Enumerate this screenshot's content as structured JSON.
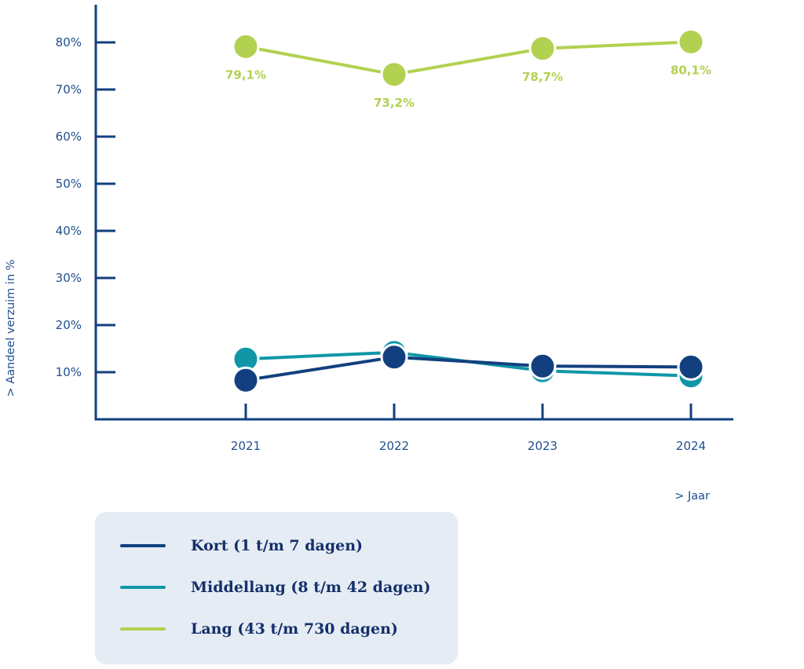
{
  "chart_data": {
    "type": "line",
    "ylabel": "> Aandeel verzuim in %",
    "xlabel": "> Jaar",
    "categories": [
      "2021",
      "2022",
      "2023",
      "2024"
    ],
    "y_ticks": [
      10,
      20,
      30,
      40,
      50,
      60,
      70,
      80
    ],
    "y_tick_labels": [
      "10%",
      "20%",
      "30%",
      "40%",
      "50%",
      "60%",
      "70%",
      "80%"
    ],
    "ylim": [
      0,
      83
    ],
    "grid": false,
    "legend_position": "bottom-left",
    "series": [
      {
        "name": "Lang (43 t/m 730 dagen)",
        "color": "#b2d151",
        "values": [
          79.1,
          73.2,
          78.7,
          80.1
        ],
        "data_labels": [
          "79,1%",
          "73,2%",
          "78,7%",
          "80,1%"
        ]
      },
      {
        "name": "Middellang (8 t/m 42 dagen)",
        "color": "#0f97a8",
        "values": [
          12.8,
          14.2,
          10.3,
          9.2
        ]
      },
      {
        "name": "Kort (1 t/m 7 dagen)",
        "color": "#12407f",
        "values": [
          8.3,
          13.2,
          11.3,
          11.1
        ]
      }
    ]
  },
  "legend": {
    "items": [
      {
        "label": "Kort (1 t/m 7 dagen)",
        "color": "#12407f"
      },
      {
        "label": "Middellang (8 t/m 42 dagen)",
        "color": "#0f97a8"
      },
      {
        "label": "Lang (43 t/m 730 dagen)",
        "color": "#b2d151"
      }
    ]
  },
  "colors": {
    "axis": "#12407f",
    "text": "#1f4e8c",
    "legend_bg": "#e5ecf4"
  }
}
